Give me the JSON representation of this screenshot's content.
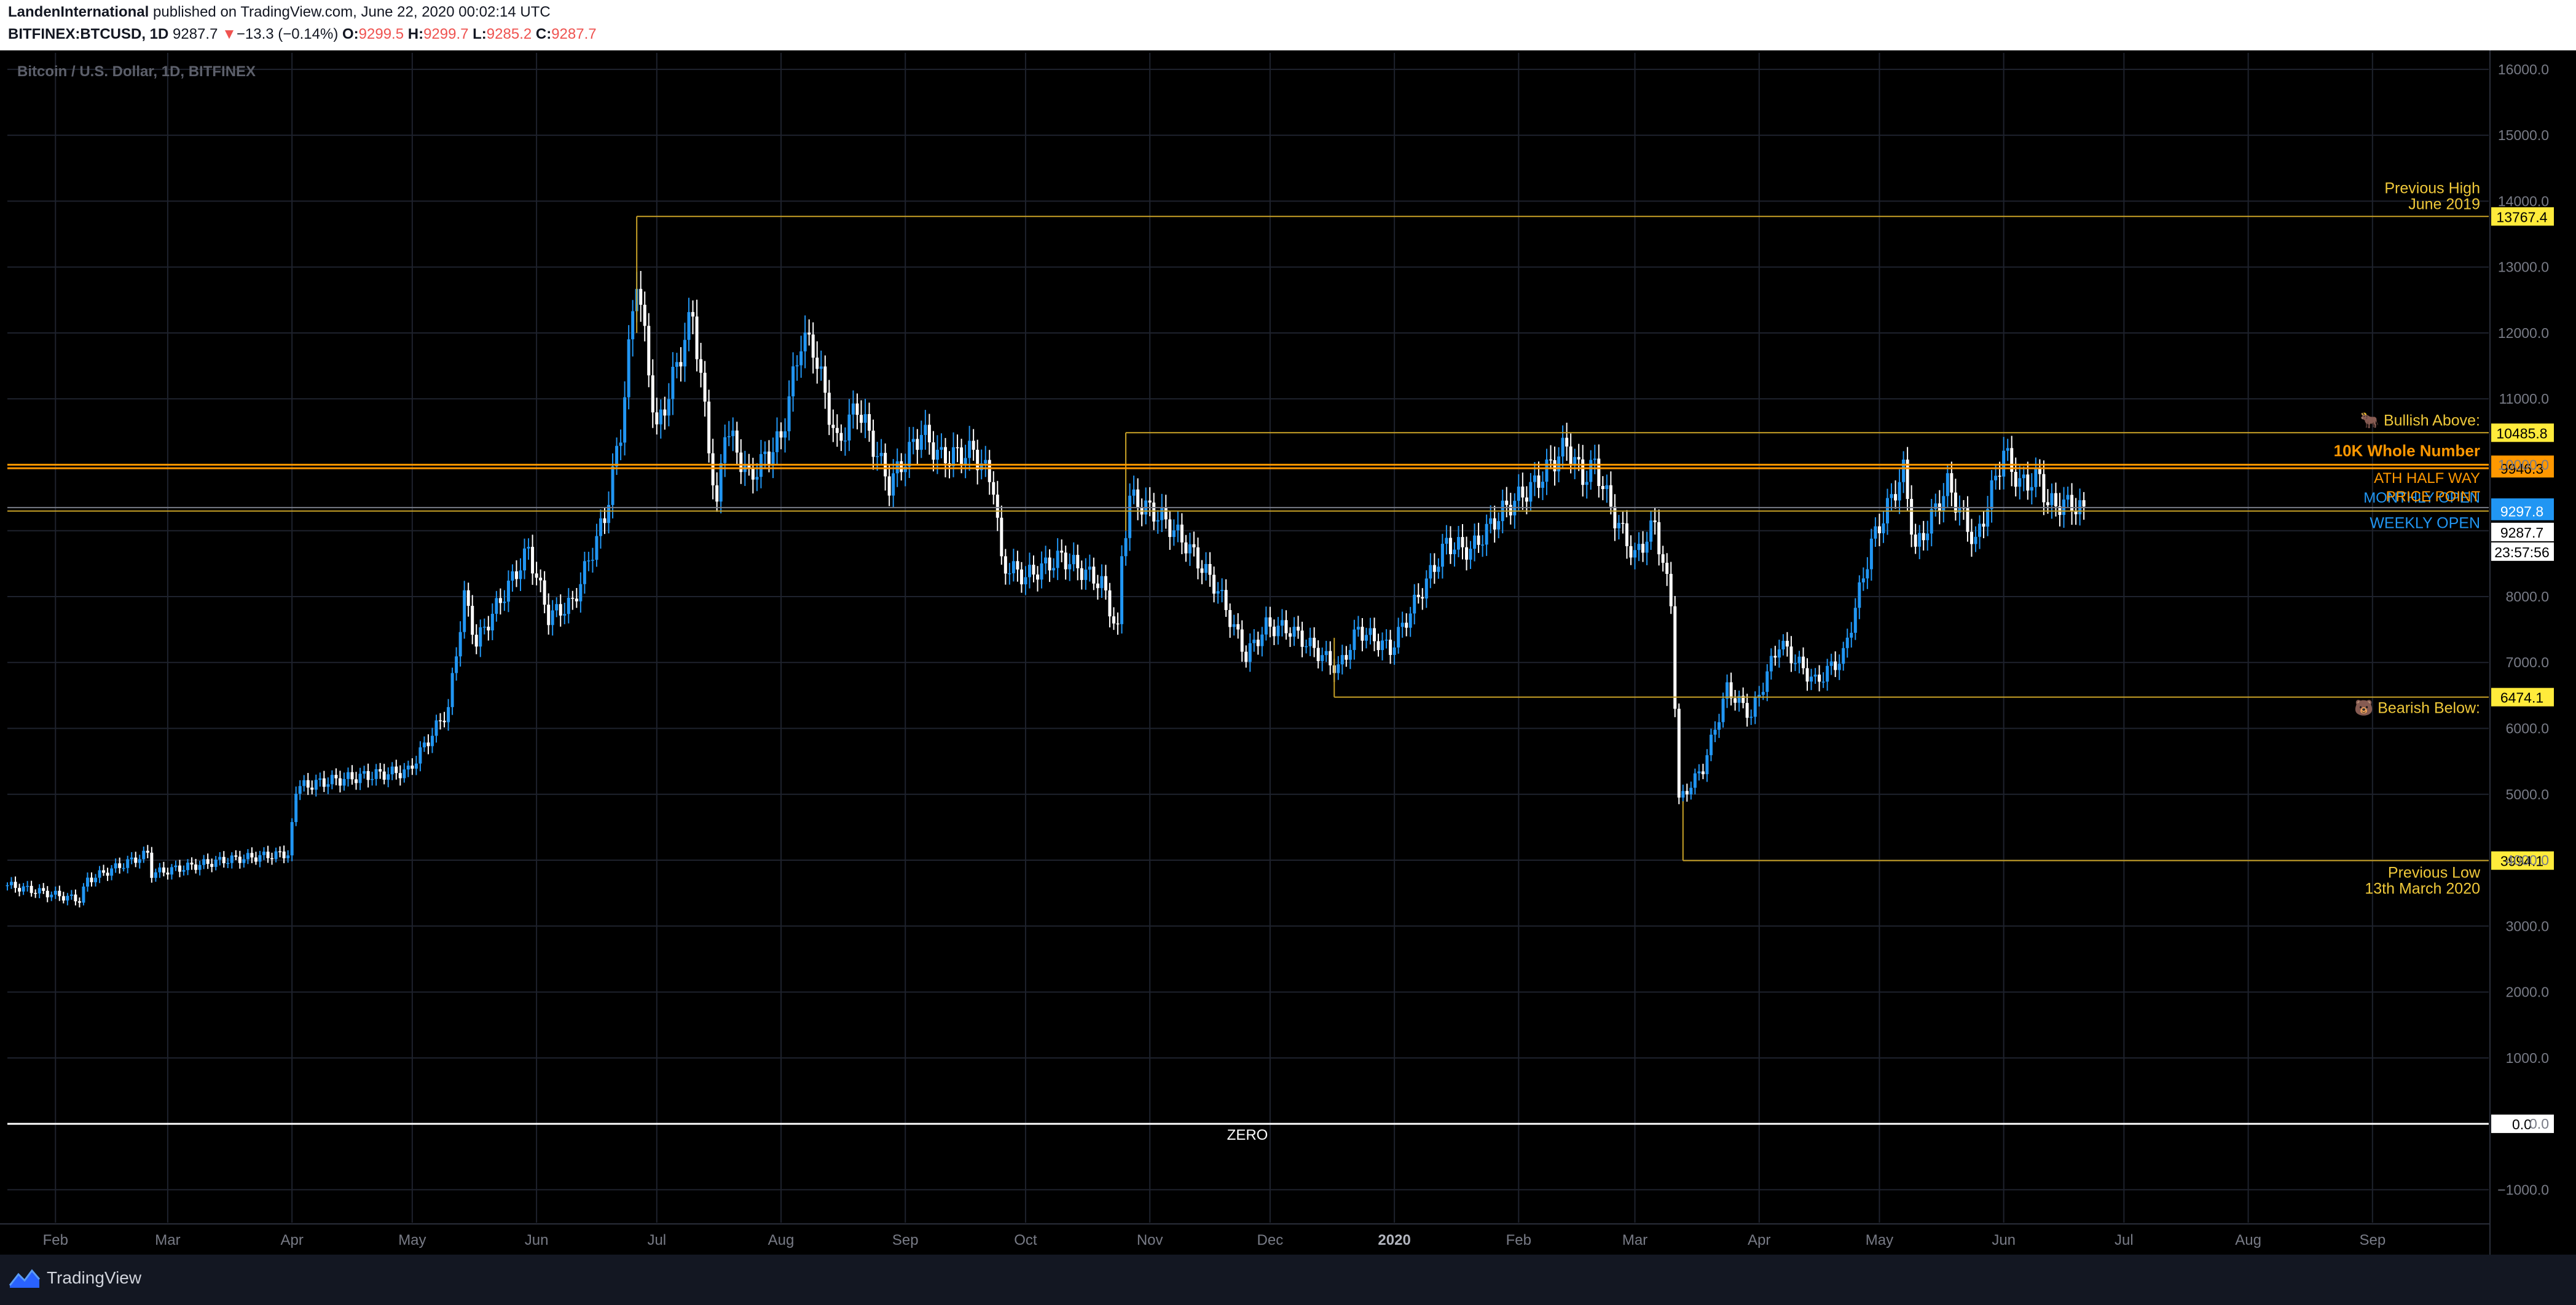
{
  "header": {
    "author": "LandenInternational",
    "published": " published on TradingView.com, June 22, 2020 00:02:14 UTC",
    "symbol": "BITFINEX:BTCUSD, 1D",
    "last": "9287.7",
    "change_arrow": "▼",
    "change": "−13.3 (−0.14%)",
    "o_label": "O:",
    "o": "9299.5",
    "h_label": "H:",
    "h": "9299.7",
    "l_label": "L:",
    "l": "9285.2",
    "c_label": "C:",
    "c": "9287.7"
  },
  "footer": {
    "brand": "TradingView",
    "logo_icon": "tradingview-logo-icon"
  },
  "chart_data": {
    "type": "candlestick",
    "title": "Bitcoin / U.S. Dollar, 1D, BITFINEX",
    "ylim": [
      -1500,
      16250
    ],
    "yticks": [
      16000,
      15000,
      14000,
      13000,
      12000,
      11000,
      10000,
      9000,
      8000,
      7000,
      6000,
      5000,
      4000,
      3000,
      2000,
      1000,
      0,
      -1000
    ],
    "ytick_labels": [
      "16000.0",
      "15000.0",
      "14000.0",
      "13000.0",
      "12000.0",
      "11000.0",
      "10000.0",
      "9000.0",
      "8000.0",
      "7000.0",
      "6000.0",
      "5000.0",
      "4000.0",
      "3000.0",
      "2000.0",
      "1000.0",
      "0.0",
      "−1000.0"
    ],
    "x_start": "2019-01-20",
    "x_end": "2020-09-30",
    "xticks": [
      {
        "date": "2019-02-01",
        "label": "Feb",
        "bold": false
      },
      {
        "date": "2019-03-01",
        "label": "Mar",
        "bold": false
      },
      {
        "date": "2019-04-01",
        "label": "Apr",
        "bold": false
      },
      {
        "date": "2019-05-01",
        "label": "May",
        "bold": false
      },
      {
        "date": "2019-06-01",
        "label": "Jun",
        "bold": false
      },
      {
        "date": "2019-07-01",
        "label": "Jul",
        "bold": false
      },
      {
        "date": "2019-08-01",
        "label": "Aug",
        "bold": false
      },
      {
        "date": "2019-09-01",
        "label": "Sep",
        "bold": false
      },
      {
        "date": "2019-10-01",
        "label": "Oct",
        "bold": false
      },
      {
        "date": "2019-11-01",
        "label": "Nov",
        "bold": false
      },
      {
        "date": "2019-12-01",
        "label": "Dec",
        "bold": false
      },
      {
        "date": "2020-01-01",
        "label": "2020",
        "bold": true
      },
      {
        "date": "2020-02-01",
        "label": "Feb",
        "bold": false
      },
      {
        "date": "2020-03-01",
        "label": "Mar",
        "bold": false
      },
      {
        "date": "2020-04-01",
        "label": "Apr",
        "bold": false
      },
      {
        "date": "2020-05-01",
        "label": "May",
        "bold": false
      },
      {
        "date": "2020-06-01",
        "label": "Jun",
        "bold": false
      },
      {
        "date": "2020-07-01",
        "label": "Jul",
        "bold": false
      },
      {
        "date": "2020-08-01",
        "label": "Aug",
        "bold": false
      },
      {
        "date": "2020-09-01",
        "label": "Sep",
        "bold": false
      }
    ],
    "close_path": [
      [
        "2019-01-20",
        3620
      ],
      [
        "2019-02-07",
        3400
      ],
      [
        "2019-02-09",
        3700
      ],
      [
        "2019-02-24",
        4100
      ],
      [
        "2019-02-25",
        3800
      ],
      [
        "2019-03-15",
        4000
      ],
      [
        "2019-03-31",
        4100
      ],
      [
        "2019-04-02",
        4900
      ],
      [
        "2019-04-02",
        5100
      ],
      [
        "2019-04-10",
        5200
      ],
      [
        "2019-04-22",
        5300
      ],
      [
        "2019-04-30",
        5350
      ],
      [
        "2019-05-10",
        6300
      ],
      [
        "2019-05-14",
        8000
      ],
      [
        "2019-05-17",
        7300
      ],
      [
        "2019-05-30",
        8700
      ],
      [
        "2019-06-04",
        7700
      ],
      [
        "2019-06-10",
        7900
      ],
      [
        "2019-06-18",
        9200
      ],
      [
        "2019-06-22",
        10500
      ],
      [
        "2019-06-26",
        12900
      ],
      [
        "2019-06-28",
        11900
      ],
      [
        "2019-07-01",
        10500
      ],
      [
        "2019-07-05",
        11300
      ],
      [
        "2019-07-10",
        12300
      ],
      [
        "2019-07-16",
        9300
      ],
      [
        "2019-07-18",
        10600
      ],
      [
        "2019-07-24",
        9800
      ],
      [
        "2019-08-01",
        10400
      ],
      [
        "2019-08-06",
        11900
      ],
      [
        "2019-08-09",
        11800
      ],
      [
        "2019-08-15",
        10300
      ],
      [
        "2019-08-20",
        10900
      ],
      [
        "2019-08-28",
        9700
      ],
      [
        "2019-09-05",
        10500
      ],
      [
        "2019-09-10",
        10100
      ],
      [
        "2019-09-18",
        10200
      ],
      [
        "2019-09-23",
        9700
      ],
      [
        "2019-09-25",
        8500
      ],
      [
        "2019-10-01",
        8300
      ],
      [
        "2019-10-10",
        8600
      ],
      [
        "2019-10-20",
        8200
      ],
      [
        "2019-10-24",
        7450
      ],
      [
        "2019-10-25",
        8600
      ],
      [
        "2019-10-27",
        9500
      ],
      [
        "2019-11-04",
        9200
      ],
      [
        "2019-11-10",
        8800
      ],
      [
        "2019-11-18",
        8100
      ],
      [
        "2019-11-25",
        7100
      ],
      [
        "2019-11-30",
        7550
      ],
      [
        "2019-12-06",
        7500
      ],
      [
        "2019-12-12",
        7200
      ],
      [
        "2019-12-18",
        6900
      ],
      [
        "2019-12-23",
        7500
      ],
      [
        "2019-12-31",
        7200
      ],
      [
        "2020-01-07",
        8000
      ],
      [
        "2020-01-14",
        8800
      ],
      [
        "2020-01-20",
        8700
      ],
      [
        "2020-01-28",
        9300
      ],
      [
        "2020-02-05",
        9700
      ],
      [
        "2020-02-13",
        10300
      ],
      [
        "2020-02-17",
        9800
      ],
      [
        "2020-02-20",
        10000
      ],
      [
        "2020-02-25",
        9200
      ],
      [
        "2020-03-01",
        8600
      ],
      [
        "2020-03-06",
        9100
      ],
      [
        "2020-03-10",
        7900
      ],
      [
        "2020-03-12",
        4900
      ],
      [
        "2020-03-18",
        5400
      ],
      [
        "2020-03-24",
        6600
      ],
      [
        "2020-03-30",
        6200
      ],
      [
        "2020-04-06",
        7300
      ],
      [
        "2020-04-15",
        6700
      ],
      [
        "2020-04-22",
        7100
      ],
      [
        "2020-04-29",
        8800
      ],
      [
        "2020-05-07",
        9900
      ],
      [
        "2020-05-10",
        8700
      ],
      [
        "2020-05-18",
        9700
      ],
      [
        "2020-05-25",
        8800
      ],
      [
        "2020-06-01",
        10200
      ],
      [
        "2020-06-05",
        9700
      ],
      [
        "2020-06-10",
        9800
      ],
      [
        "2020-06-12",
        9400
      ],
      [
        "2020-06-18",
        9400
      ],
      [
        "2020-06-21",
        9287.7
      ]
    ],
    "levels": [
      {
        "price": 13767.4,
        "label": "13767.4",
        "start": "2019-06-26",
        "color": "#c9a227",
        "text": [
          "Previous High",
          "June 2019"
        ],
        "text_color": "#f0c93a",
        "box_bg": "#ffeb3b",
        "box_fg": "#000000"
      },
      {
        "price": 10485.8,
        "label": "10485.8",
        "start": "2019-10-26",
        "color": "#c9a227",
        "text": [
          "🐂 Bullish Above:"
        ],
        "text_color": "#f0c93a",
        "box_bg": "#ffeb3b",
        "box_fg": "#000000"
      },
      {
        "price": 10000.0,
        "label": "10000.0",
        "start": "2019-01-20",
        "color": "#ff9800",
        "text": [
          "10K Whole Number"
        ],
        "text_color": "#ff9800",
        "box_bg": "#ff9800",
        "box_fg": "#000000",
        "bold": true
      },
      {
        "price": 9946.3,
        "label": "9946.3",
        "start": "2019-01-20",
        "color": "#ff9800",
        "text": [
          "ATH HALF WAY"
        ],
        "text_color": "#ff9800",
        "box_bg": "#ff9800",
        "box_fg": "#000000"
      },
      {
        "price": 9349.8,
        "label": "9349.8",
        "start": "2019-01-20",
        "color": "#787b86",
        "text": [
          "MONTHLY OPEN",
          "PRICE POINT"
        ],
        "text_color": "#2196f3",
        "box_bg": "#2196f3",
        "box_fg": "#ffffff"
      },
      {
        "price": 9297.8,
        "label": "9297.8",
        "start": "2019-01-20",
        "color": "#c9a227",
        "text": [
          "WEEKLY OPEN"
        ],
        "text_color": "#2196f3",
        "box_bg": "#2196f3",
        "box_fg": "#ffffff"
      },
      {
        "price": 6474.1,
        "label": "6474.1",
        "start": "2019-12-17",
        "color": "#c9a227",
        "text": [
          "🐻 Bearish Below:"
        ],
        "text_color": "#f0c93a",
        "box_bg": "#ffeb3b",
        "box_fg": "#000000"
      },
      {
        "price": 3994.1,
        "label": "3994.1",
        "start": "2020-03-13",
        "color": "#c9a227",
        "text": [
          "Previous Low",
          "13th March 2020"
        ],
        "text_color": "#f0c93a",
        "box_bg": "#ffeb3b",
        "box_fg": "#000000"
      },
      {
        "price": 0.0,
        "label": "0.0",
        "start": "2019-01-20",
        "color": "#ffffff",
        "text": [
          "ZERO"
        ],
        "text_color": "#ffffff",
        "box_bg": "#ffffff",
        "box_fg": "#000000",
        "center_text": true
      }
    ],
    "current_price": {
      "label": "9287.7",
      "countdown": "23:57:56"
    },
    "colors": {
      "up": "#2196f3",
      "down": "#ffffff",
      "grid": "#1e222d",
      "axis_text": "#787b86",
      "background": "#000000"
    }
  }
}
